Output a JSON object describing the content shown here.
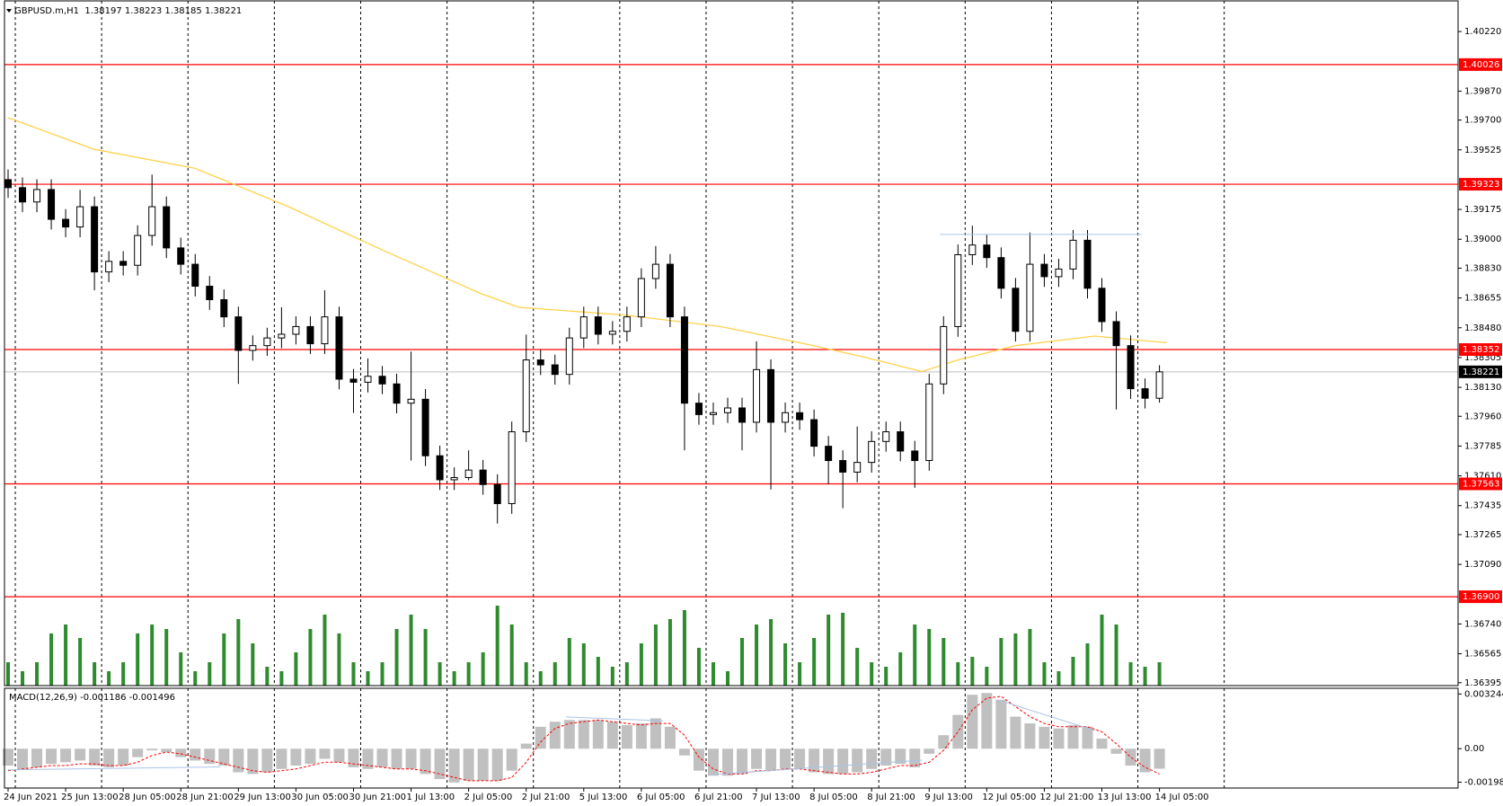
{
  "chart_data": [
    {
      "type": "candlestick",
      "title": "GBPUSD.m,H1  1.38197 1.38223 1.38185 1.38221",
      "x": [
        0,
        4,
        8,
        12,
        16,
        20,
        24,
        28,
        32,
        36,
        40,
        44,
        48,
        52,
        56,
        60,
        64,
        68,
        72,
        76,
        80,
        84,
        88,
        92,
        96,
        100,
        104,
        108,
        112,
        116,
        120,
        124,
        128,
        132,
        136,
        140,
        144,
        148,
        152,
        156,
        160,
        164,
        168,
        172,
        176,
        180,
        184,
        188,
        192,
        196,
        200,
        204,
        208,
        212,
        216,
        220,
        224,
        228,
        232,
        236,
        240,
        244,
        248,
        252,
        256,
        260,
        264,
        268,
        272,
        276,
        280,
        284,
        288,
        292,
        296,
        300,
        304,
        308,
        312,
        316,
        320
      ],
      "open": [
        1.3935,
        1.39303,
        1.39219,
        1.39292,
        1.39117,
        1.39072,
        1.39191,
        1.38808,
        1.3887,
        1.38847,
        1.39022,
        1.39191,
        1.38949,
        1.38853,
        1.38724,
        1.38645,
        1.38544,
        1.38347,
        1.38375,
        1.3842,
        1.38442,
        1.38487,
        1.38386,
        1.38544,
        1.38178,
        1.3816,
        1.38195,
        1.3815,
        1.38037,
        1.3806,
        1.37728,
        1.37587,
        1.376,
        1.37644,
        1.37559,
        1.37447,
        1.37869,
        1.38291,
        1.38262,
        1.38206,
        1.3842,
        1.38544,
        1.38442,
        1.38459,
        1.38544,
        1.38769,
        1.38853,
        1.38544,
        1.38037,
        1.3797,
        1.37981,
        1.38009,
        1.37925,
        1.38234,
        1.37925,
        1.37981,
        1.3794,
        1.37784,
        1.377,
        1.37632,
        1.37689,
        1.37812,
        1.37869,
        1.37756,
        1.377,
        1.3815,
        1.38487,
        1.38909,
        1.38966,
        1.38892,
        1.38712,
        1.38459,
        1.38853,
        1.3878,
        1.38825,
        1.38994,
        1.38712,
        1.38516,
        1.38375,
        1.38122,
        1.38066
      ],
      "high": [
        1.3941,
        1.39363,
        1.39352,
        1.39352,
        1.39177,
        1.3929,
        1.39251,
        1.3893,
        1.3893,
        1.39082,
        1.3938,
        1.39251,
        1.39009,
        1.38913,
        1.38784,
        1.38705,
        1.38604,
        1.38435,
        1.3848,
        1.386,
        1.38547,
        1.38547,
        1.387,
        1.38604,
        1.38238,
        1.383,
        1.38255,
        1.3821,
        1.3834,
        1.3812,
        1.37788,
        1.3766,
        1.3776,
        1.37704,
        1.37619,
        1.37929,
        1.3844,
        1.38351,
        1.38322,
        1.3848,
        1.38604,
        1.38604,
        1.38519,
        1.38604,
        1.38829,
        1.3896,
        1.38913,
        1.38604,
        1.38097,
        1.38041,
        1.38069,
        1.38069,
        1.384,
        1.38294,
        1.38041,
        1.38041,
        1.38,
        1.37844,
        1.3776,
        1.379,
        1.37872,
        1.37929,
        1.37929,
        1.37816,
        1.3821,
        1.38547,
        1.38969,
        1.3908,
        1.39026,
        1.38952,
        1.38772,
        1.3904,
        1.38913,
        1.38885,
        1.39054,
        1.39054,
        1.38772,
        1.38576,
        1.38435,
        1.38182,
        1.3826
      ],
      "low": [
        1.39243,
        1.39159,
        1.39159,
        1.39057,
        1.39012,
        1.39012,
        1.387,
        1.38748,
        1.38787,
        1.38787,
        1.38962,
        1.38889,
        1.38793,
        1.38664,
        1.38585,
        1.38484,
        1.3815,
        1.38287,
        1.38315,
        1.3836,
        1.38382,
        1.38326,
        1.38326,
        1.38118,
        1.3798,
        1.381,
        1.3809,
        1.37977,
        1.377,
        1.37668,
        1.37527,
        1.37527,
        1.37584,
        1.37499,
        1.3733,
        1.37387,
        1.37809,
        1.38202,
        1.38146,
        1.38146,
        1.3836,
        1.38382,
        1.38382,
        1.38399,
        1.38484,
        1.38709,
        1.38484,
        1.3776,
        1.3791,
        1.3791,
        1.37921,
        1.3776,
        1.37865,
        1.3753,
        1.37865,
        1.3788,
        1.37724,
        1.3756,
        1.3742,
        1.37572,
        1.37629,
        1.37752,
        1.37696,
        1.3754,
        1.3764,
        1.3809,
        1.38427,
        1.38849,
        1.38832,
        1.38652,
        1.38399,
        1.38399,
        1.3872,
        1.3872,
        1.38765,
        1.38652,
        1.38456,
        1.38,
        1.38062,
        1.38006,
        1.3804
      ],
      "close": [
        1.39303,
        1.39219,
        1.39292,
        1.39117,
        1.39072,
        1.39191,
        1.38808,
        1.3887,
        1.38847,
        1.39022,
        1.39191,
        1.38949,
        1.38853,
        1.38724,
        1.38645,
        1.38544,
        1.38347,
        1.38375,
        1.3842,
        1.38442,
        1.38487,
        1.38386,
        1.38544,
        1.38178,
        1.3816,
        1.38195,
        1.3815,
        1.38037,
        1.3806,
        1.37728,
        1.37587,
        1.376,
        1.37644,
        1.37559,
        1.37447,
        1.37869,
        1.38291,
        1.38262,
        1.38206,
        1.3842,
        1.38544,
        1.38442,
        1.38459,
        1.38544,
        1.38769,
        1.38853,
        1.38544,
        1.38037,
        1.3797,
        1.37981,
        1.38009,
        1.37925,
        1.38234,
        1.37925,
        1.37981,
        1.3794,
        1.37784,
        1.377,
        1.37632,
        1.37689,
        1.37812,
        1.37869,
        1.37756,
        1.377,
        1.3815,
        1.38487,
        1.38909,
        1.38966,
        1.38892,
        1.38712,
        1.38459,
        1.38853,
        1.3878,
        1.38825,
        1.38994,
        1.38712,
        1.38516,
        1.38375,
        1.38122,
        1.38066,
        1.38221
      ],
      "up_color": "#ffffff",
      "down_color": "#000000",
      "wick_color": "#000000",
      "xlim": [
        -1,
        403
      ],
      "ylim": [
        1.36378,
        1.404
      ],
      "yticks": [
        {
          "value": 1.4022,
          "label": "1.40220"
        },
        {
          "value": 1.3987,
          "label": "1.39870"
        },
        {
          "value": 1.397,
          "label": "1.39700"
        },
        1.39525,
        1.39175,
        {
          "value": 1.39,
          "label": "1.39000"
        },
        {
          "value": 1.3883,
          "label": "1.38830"
        },
        1.38655,
        {
          "value": 1.3848,
          "label": "1.38480"
        },
        1.38305,
        {
          "value": 1.3813,
          "label": "1.38130"
        },
        {
          "value": 1.3796,
          "label": "1.37960"
        },
        1.37785,
        {
          "value": 1.3761,
          "label": "1.37610"
        },
        1.37435,
        1.37265,
        {
          "value": 1.3709,
          "label": "1.37090"
        },
        {
          "value": 1.3674,
          "label": "1.36740"
        },
        1.36565,
        1.36395
      ],
      "xticks": [
        {
          "value": 0,
          "label": "24 Jun 2021"
        },
        {
          "value": 16,
          "label": "25 Jun 13:00"
        },
        {
          "value": 32,
          "label": "28 Jun 05:00"
        },
        {
          "value": 48,
          "label": "28 Jun 21:00"
        },
        {
          "value": 64,
          "label": "29 Jun 13:00"
        },
        {
          "value": 80,
          "label": "30 Jun 05:00"
        },
        {
          "value": 96,
          "label": "30 Jun 21:00"
        },
        {
          "value": 112,
          "label": "1 Jul 13:00"
        },
        {
          "value": 128,
          "label": "2 Jul 05:00"
        },
        {
          "value": 144,
          "label": "2 Jul 21:00"
        },
        {
          "value": 160,
          "label": "5 Jul 13:00"
        },
        {
          "value": 176,
          "label": "6 Jul 05:00"
        },
        {
          "value": 192,
          "label": "6 Jul 21:00"
        },
        {
          "value": 208,
          "label": "7 Jul 13:00"
        },
        {
          "value": 224,
          "label": "8 Jul 05:00"
        },
        {
          "value": 240,
          "label": "8 Jul 21:00"
        },
        {
          "value": 256,
          "label": "9 Jul 13:00"
        },
        {
          "value": 272,
          "label": "12 Jul 05:00"
        },
        {
          "value": 288,
          "label": "12 Jul 21:00"
        },
        {
          "value": 304,
          "label": "13 Jul 13:00"
        },
        {
          "value": 320,
          "label": "14 Jul 05:00"
        }
      ],
      "vgrid": [
        2,
        26,
        50,
        74,
        98,
        122,
        146,
        170,
        194,
        218,
        242,
        266,
        290,
        314,
        338
      ],
      "levels": [
        {
          "value": 1.40026
        },
        {
          "value": 1.39323
        },
        {
          "value": 1.38352
        },
        {
          "value": 1.37563
        },
        {
          "value": 1.369,
          "label": "1.36900"
        }
      ],
      "level_color": "#ff0000",
      "current_price": 1.38221,
      "current_color": "#c0c0c0",
      "ma": {
        "color": "#ffd24a",
        "x": [
          0,
          24,
          52,
          78,
          104,
          131,
          142,
          171,
          198,
          224,
          238,
          254,
          264,
          280,
          302,
          322
        ],
        "values": [
          1.39714,
          1.39528,
          1.39416,
          1.39191,
          1.38937,
          1.38684,
          1.386,
          1.38555,
          1.38487,
          1.38375,
          1.38307,
          1.38223,
          1.38291,
          1.38375,
          1.38431,
          1.38392
        ]
      },
      "trendlines": [
        {
          "color": "#a9c4e6",
          "x": [
            259,
            315
          ],
          "values": [
            1.39028,
            1.39028
          ]
        }
      ],
      "volume": {
        "color": "#2e8b2e",
        "lim": [
          0,
          100
        ],
        "values": [
          26,
          16,
          26,
          58,
          68,
          53,
          26,
          16,
          26,
          58,
          68,
          63,
          37,
          16,
          26,
          58,
          74,
          47,
          21,
          16,
          37,
          63,
          79,
          58,
          26,
          16,
          26,
          63,
          79,
          63,
          26,
          16,
          26,
          37,
          89,
          68,
          26,
          16,
          26,
          53,
          47,
          32,
          21,
          26,
          47,
          68,
          74,
          84,
          42,
          26,
          16,
          53,
          68,
          74,
          47,
          26,
          53,
          79,
          81,
          42,
          26,
          21,
          37,
          68,
          63,
          53,
          26,
          32,
          21,
          53,
          58,
          63,
          26,
          16,
          32,
          47,
          79,
          68,
          26,
          21,
          26
        ]
      }
    },
    {
      "type": "macd",
      "title": "MACD(12,26,9) -0.001186 -0.001496",
      "ylim": [
        -0.00233,
        0.00358
      ],
      "yticks": [
        0.003244,
        {
          "value": 0,
          "label": "0.00"
        },
        -0.001984
      ],
      "hist_color": "#c0c0c0",
      "signal_color": "#ff0000",
      "values": [
        -0.001,
        -0.0012,
        -0.0011,
        -0.0009,
        -0.0008,
        -0.0007,
        -0.001,
        -0.0011,
        -0.001,
        -0.0005,
        -0.0001,
        -0.0002,
        -0.0005,
        -0.0007,
        -0.0009,
        -0.001,
        -0.0014,
        -0.0015,
        -0.0014,
        -0.0012,
        -0.001,
        -0.0009,
        -0.0006,
        -0.0008,
        -0.0011,
        -0.0012,
        -0.0011,
        -0.0012,
        -0.0012,
        -0.0015,
        -0.0018,
        -0.002,
        -0.0019,
        -0.0019,
        -0.0019,
        -0.0013,
        0.0003,
        0.0013,
        0.0016,
        0.0017,
        0.0017,
        0.0017,
        0.0016,
        0.0014,
        0.0015,
        0.0018,
        0.0013,
        -0.0004,
        -0.0013,
        -0.0016,
        -0.0016,
        -0.0015,
        -0.0012,
        -0.0013,
        -0.0012,
        -0.0012,
        -0.0014,
        -0.0015,
        -0.0015,
        -0.0014,
        -0.0012,
        -0.001,
        -0.0009,
        -0.0011,
        -0.0003,
        0.0008,
        0.002,
        0.0032,
        0.0033,
        0.0029,
        0.0019,
        0.0015,
        0.0013,
        0.0012,
        0.0014,
        0.0013,
        0.0006,
        -0.0003,
        -0.001,
        -0.0014,
        -0.001186
      ],
      "signal": [
        -0.0013,
        -0.0012,
        -0.0011,
        -0.001,
        -0.001,
        -0.0009,
        -0.0009,
        -0.001,
        -0.001,
        -0.0008,
        -0.0004,
        -0.0002,
        -0.0003,
        -0.0005,
        -0.0007,
        -0.0009,
        -0.0011,
        -0.0013,
        -0.0014,
        -0.0013,
        -0.0012,
        -0.001,
        -0.0008,
        -0.0008,
        -0.0009,
        -0.001,
        -0.0011,
        -0.0012,
        -0.0012,
        -0.0013,
        -0.0015,
        -0.0017,
        -0.0019,
        -0.0019,
        -0.0019,
        -0.0017,
        -0.0008,
        0.0004,
        0.0012,
        0.0015,
        0.0016,
        0.0017,
        0.0016,
        0.0015,
        0.0014,
        0.0015,
        0.0015,
        0.0008,
        -0.0005,
        -0.0012,
        -0.0015,
        -0.0015,
        -0.0013,
        -0.0013,
        -0.0012,
        -0.0012,
        -0.0013,
        -0.0014,
        -0.0015,
        -0.0015,
        -0.0014,
        -0.0012,
        -0.001,
        -0.001,
        -0.0008,
        -0.0001,
        0.001,
        0.0023,
        0.003,
        0.0031,
        0.0025,
        0.0019,
        0.0015,
        0.0013,
        0.0013,
        0.0013,
        0.001,
        0.0003,
        -0.0005,
        -0.0011,
        -0.001496
      ],
      "trendlines": [
        {
          "color": "#a9c4e6",
          "x": [
            0,
            59
          ],
          "values": [
            -0.00125,
            -0.00108
          ]
        },
        {
          "color": "#a9c4e6",
          "x": [
            155,
            182
          ],
          "values": [
            0.00188,
            0.00165
          ]
        },
        {
          "color": "#a9c4e6",
          "x": [
            195,
            254
          ],
          "values": [
            -0.00154,
            -0.00068
          ]
        },
        {
          "color": "#a9c4e6",
          "x": [
            275,
            302
          ],
          "values": [
            0.0029,
            0.00108
          ]
        }
      ]
    }
  ]
}
